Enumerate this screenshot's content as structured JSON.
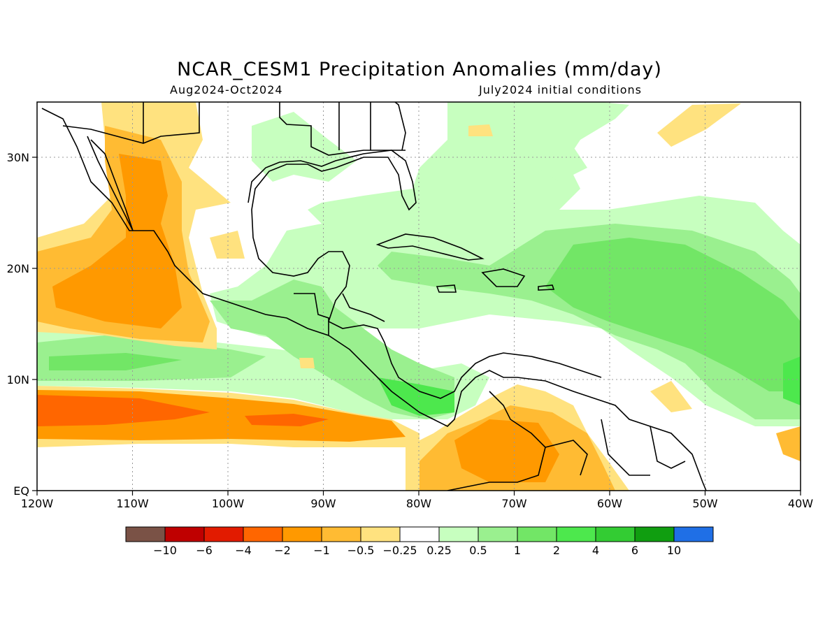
{
  "header": {
    "title": "NCAR_CESM1 Precipitation Anomalies (mm/day)",
    "period": "Aug2024-Oct2024",
    "init": "July2024 initial conditions"
  },
  "map": {
    "lat_labels": [
      "EQ",
      "10N",
      "20N",
      "30N"
    ],
    "lon_labels": [
      "120W",
      "110W",
      "100W",
      "90W",
      "80W",
      "70W",
      "60W",
      "50W",
      "40W"
    ],
    "extent": {
      "lon": [
        -120,
        -40
      ],
      "lat": [
        0,
        35
      ]
    },
    "grid": "dotted"
  },
  "legend": {
    "colors": [
      "#7a5246",
      "#bf0000",
      "#e21b00",
      "#ff6600",
      "#ff9900",
      "#ffbb33",
      "#ffe27f",
      "#ffffff",
      "#c7ffbf",
      "#9af08f",
      "#72e666",
      "#4de84d",
      "#33cc33",
      "#109e10",
      "#1f6fe6"
    ],
    "labels": [
      "−10",
      "−6",
      "−4",
      "−2",
      "−1",
      "−0.5",
      "−0.25",
      "0.25",
      "0.5",
      "1",
      "2",
      "4",
      "6",
      "10"
    ]
  }
}
